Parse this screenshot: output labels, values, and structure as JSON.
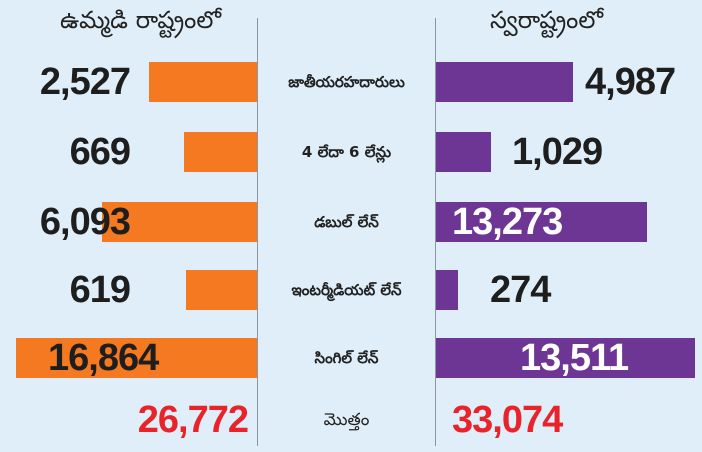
{
  "colors": {
    "left": "#f47920",
    "right": "#6d3694",
    "total": "#e8232a"
  },
  "chart_data": {
    "type": "bar",
    "title": "",
    "series": [
      {
        "name": "ఉమ్మడి రాష్ట్రంలో",
        "values": [
          2527,
          669,
          6093,
          619,
          16864
        ],
        "labels": [
          "2,527",
          "669",
          "6,093",
          "619",
          "16,864"
        ],
        "total": "26,772"
      },
      {
        "name": "స్వరాష్ట్రంలో",
        "values": [
          4987,
          1029,
          13273,
          274,
          13511
        ],
        "labels": [
          "4,987",
          "1,029",
          "13,273",
          "274",
          "13,511"
        ],
        "total": "33,074"
      }
    ],
    "categories": [
      "జాతీయరహదారులు",
      "4 లేదా 6 లేన్లు",
      "డబుల్ లేన్",
      "ఇంటర్మీడియట్ లేన్",
      "సింగిల్ లేన్"
    ],
    "total_label": "మొత్తం"
  }
}
